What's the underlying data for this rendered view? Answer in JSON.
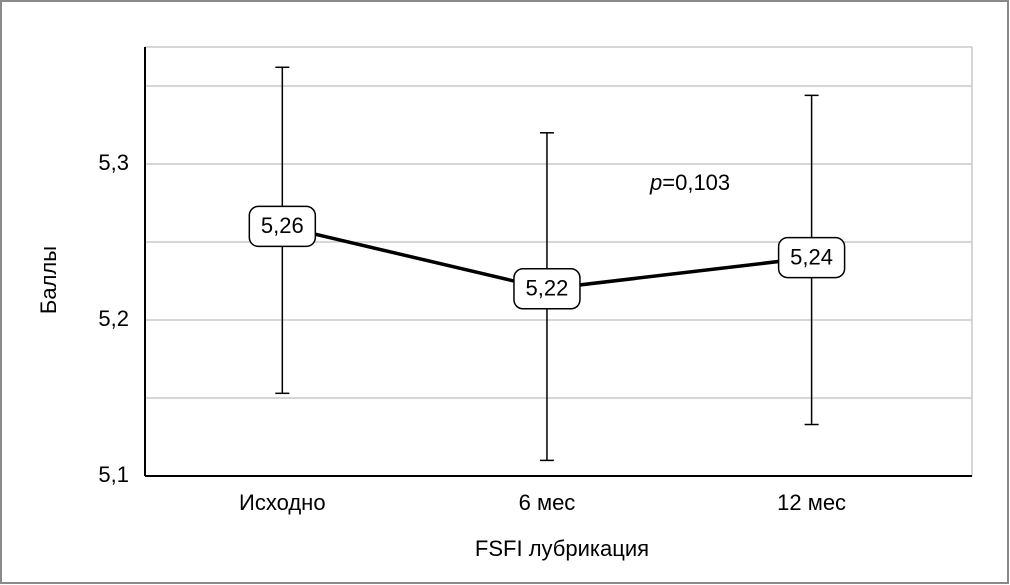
{
  "chart_data": {
    "type": "line",
    "x_label": "FSFI лубрикация",
    "y_label": "Баллы",
    "annotation": {
      "italic": "p",
      "text": "=0,103"
    },
    "categories": [
      "Исходно",
      "6 мес",
      "12 мес"
    ],
    "values": [
      5.26,
      5.22,
      5.24
    ],
    "value_labels": [
      "5,26",
      "5,22",
      "5,24"
    ],
    "lower": [
      5.153,
      5.11,
      5.133
    ],
    "upper": [
      5.362,
      5.32,
      5.344
    ],
    "color": "#000000",
    "ylim": [
      5.1,
      5.375
    ],
    "yticks": [
      {
        "value": 5.1,
        "label": "5,1"
      },
      {
        "value": 5.2,
        "label": "5,2"
      },
      {
        "value": 5.3,
        "label": "5,3"
      }
    ],
    "minor_yticks": [
      5.15,
      5.25,
      5.35
    ],
    "grid": true
  }
}
